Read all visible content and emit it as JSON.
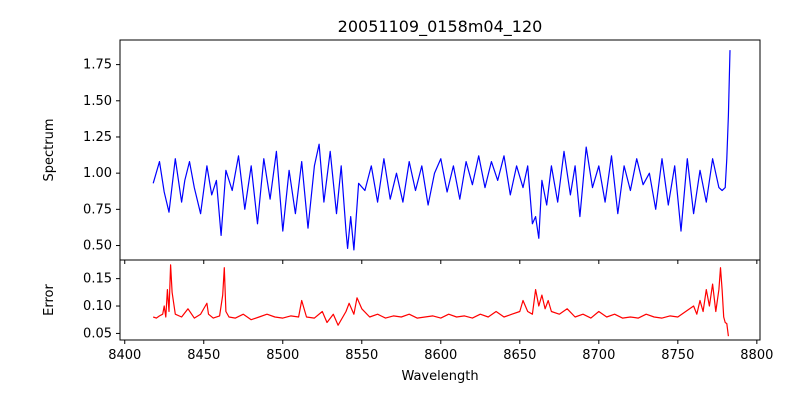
{
  "chart_data": [
    {
      "type": "line",
      "title": "20051109_0158m04_120",
      "xlabel": "",
      "ylabel": "Spectrum",
      "xlim": [
        8397,
        8802
      ],
      "ylim": [
        0.4,
        1.92
      ],
      "xticks": [
        8400,
        8450,
        8500,
        8550,
        8600,
        8650,
        8700,
        8750,
        8800
      ],
      "yticks": [
        0.5,
        0.75,
        1.0,
        1.25,
        1.5,
        1.75
      ],
      "ytick_labels": [
        "0.50",
        "0.75",
        "1.00",
        "1.25",
        "1.50",
        "1.75"
      ],
      "show_xtick_labels": false,
      "grid": false,
      "series": [
        {
          "color": "#0000ff",
          "x": [
            8418,
            8422,
            8425,
            8428,
            8432,
            8436,
            8438,
            8441,
            8444,
            8448,
            8452,
            8455,
            8458,
            8461,
            8464,
            8468,
            8472,
            8476,
            8480,
            8484,
            8488,
            8492,
            8496,
            8500,
            8504,
            8508,
            8512,
            8516,
            8520,
            8523,
            8526,
            8530,
            8534,
            8537,
            8540,
            8541,
            8543,
            8545,
            8548,
            8552,
            8556,
            8560,
            8564,
            8568,
            8572,
            8576,
            8580,
            8584,
            8588,
            8592,
            8596,
            8600,
            8604,
            8608,
            8612,
            8616,
            8620,
            8624,
            8628,
            8632,
            8636,
            8640,
            8644,
            8648,
            8652,
            8655,
            8658,
            8660,
            8662,
            8664,
            8667,
            8670,
            8674,
            8678,
            8682,
            8685,
            8688,
            8692,
            8696,
            8700,
            8704,
            8708,
            8712,
            8716,
            8720,
            8724,
            8728,
            8732,
            8736,
            8740,
            8744,
            8748,
            8752,
            8756,
            8760,
            8764,
            8768,
            8772,
            8776,
            8778,
            8780,
            8781,
            8782,
            8783
          ],
          "y": [
            0.93,
            1.08,
            0.87,
            0.73,
            1.1,
            0.8,
            0.95,
            1.08,
            0.9,
            0.72,
            1.05,
            0.85,
            0.95,
            0.57,
            1.02,
            0.88,
            1.12,
            0.75,
            1.05,
            0.65,
            1.1,
            0.82,
            1.15,
            0.6,
            1.02,
            0.72,
            1.08,
            0.62,
            1.05,
            1.2,
            0.8,
            1.15,
            0.72,
            1.05,
            0.6,
            0.48,
            0.7,
            0.47,
            0.93,
            0.88,
            1.05,
            0.8,
            1.1,
            0.82,
            1.0,
            0.8,
            1.08,
            0.88,
            1.05,
            0.78,
            1.0,
            1.1,
            0.87,
            1.05,
            0.82,
            1.08,
            0.92,
            1.12,
            0.9,
            1.08,
            0.95,
            1.12,
            0.85,
            1.05,
            0.9,
            1.05,
            0.65,
            0.7,
            0.55,
            0.95,
            0.78,
            1.05,
            0.8,
            1.15,
            0.85,
            1.05,
            0.7,
            1.18,
            0.9,
            1.05,
            0.8,
            1.12,
            0.72,
            1.05,
            0.88,
            1.1,
            0.92,
            1.0,
            0.75,
            1.1,
            0.78,
            1.05,
            0.6,
            1.1,
            0.72,
            1.02,
            0.8,
            1.1,
            0.9,
            0.88,
            0.9,
            1.1,
            1.4,
            1.85
          ]
        }
      ]
    },
    {
      "type": "line",
      "title": "",
      "xlabel": "Wavelength",
      "ylabel": "Error",
      "xlim": [
        8397,
        8802
      ],
      "ylim": [
        0.038,
        0.184
      ],
      "xticks": [
        8400,
        8450,
        8500,
        8550,
        8600,
        8650,
        8700,
        8750,
        8800
      ],
      "yticks": [
        0.05,
        0.1,
        0.15
      ],
      "ytick_labels": [
        "0.05",
        "0.10",
        "0.15"
      ],
      "show_xtick_labels": true,
      "grid": false,
      "series": [
        {
          "color": "#ff0000",
          "x": [
            8418,
            8420,
            8422,
            8424,
            8425,
            8426,
            8427,
            8428,
            8429,
            8430,
            8432,
            8436,
            8440,
            8444,
            8448,
            8451,
            8452,
            8453,
            8456,
            8460,
            8462,
            8463,
            8464,
            8466,
            8470,
            8475,
            8480,
            8485,
            8490,
            8495,
            8500,
            8505,
            8510,
            8512,
            8515,
            8520,
            8525,
            8528,
            8532,
            8535,
            8540,
            8542,
            8545,
            8547,
            8550,
            8555,
            8560,
            8565,
            8570,
            8575,
            8580,
            8585,
            8590,
            8595,
            8600,
            8605,
            8610,
            8615,
            8620,
            8625,
            8630,
            8635,
            8640,
            8645,
            8650,
            8652,
            8655,
            8658,
            8660,
            8662,
            8664,
            8666,
            8668,
            8670,
            8675,
            8680,
            8685,
            8690,
            8695,
            8700,
            8705,
            8710,
            8715,
            8720,
            8725,
            8730,
            8735,
            8740,
            8745,
            8750,
            8755,
            8760,
            8762,
            8764,
            8766,
            8768,
            8770,
            8772,
            8774,
            8776,
            8777,
            8778,
            8779,
            8780,
            8781,
            8782
          ],
          "y": [
            0.08,
            0.078,
            0.082,
            0.085,
            0.1,
            0.08,
            0.13,
            0.09,
            0.175,
            0.125,
            0.085,
            0.08,
            0.095,
            0.078,
            0.085,
            0.1,
            0.105,
            0.085,
            0.078,
            0.082,
            0.12,
            0.17,
            0.09,
            0.08,
            0.078,
            0.085,
            0.075,
            0.08,
            0.085,
            0.08,
            0.078,
            0.082,
            0.08,
            0.11,
            0.08,
            0.078,
            0.09,
            0.07,
            0.085,
            0.065,
            0.09,
            0.105,
            0.085,
            0.115,
            0.095,
            0.08,
            0.085,
            0.078,
            0.082,
            0.08,
            0.085,
            0.078,
            0.08,
            0.082,
            0.078,
            0.085,
            0.08,
            0.082,
            0.078,
            0.085,
            0.08,
            0.09,
            0.08,
            0.085,
            0.09,
            0.11,
            0.09,
            0.085,
            0.13,
            0.1,
            0.12,
            0.095,
            0.11,
            0.09,
            0.085,
            0.095,
            0.08,
            0.085,
            0.078,
            0.09,
            0.08,
            0.085,
            0.078,
            0.08,
            0.078,
            0.085,
            0.08,
            0.078,
            0.082,
            0.08,
            0.09,
            0.1,
            0.085,
            0.11,
            0.09,
            0.13,
            0.1,
            0.14,
            0.09,
            0.13,
            0.17,
            0.13,
            0.08,
            0.07,
            0.068,
            0.045
          ]
        }
      ]
    }
  ]
}
